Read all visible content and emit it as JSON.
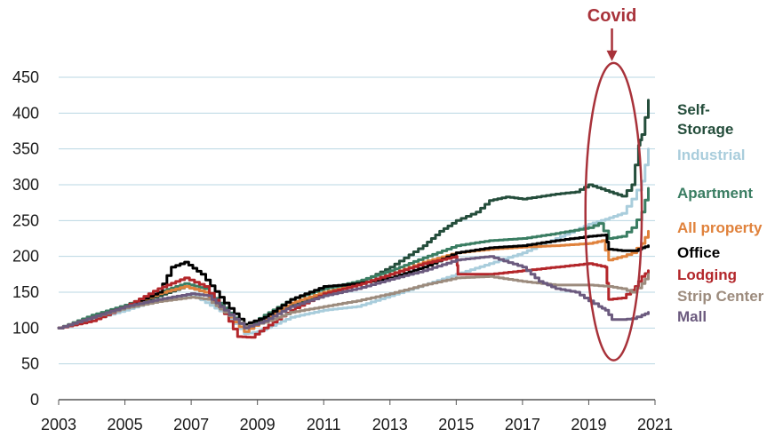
{
  "chart_data": {
    "type": "line",
    "title": "",
    "xlabel": "",
    "ylabel": "",
    "xlim": [
      2003,
      2021
    ],
    "ylim": [
      0,
      450
    ],
    "x_ticks": [
      2003,
      2005,
      2007,
      2009,
      2011,
      2013,
      2015,
      2017,
      2019,
      2021
    ],
    "x_tick_labels": [
      "2003",
      "2005",
      "2007",
      "2009",
      "2011",
      "2013",
      "2015",
      "2017",
      "2019",
      "2021"
    ],
    "y_ticks": [
      0,
      50,
      100,
      150,
      200,
      250,
      300,
      350,
      400,
      450
    ],
    "y_tick_labels": [
      "0",
      "50",
      "100",
      "150",
      "200",
      "250",
      "300",
      "350",
      "400",
      "450"
    ],
    "grid": "horizontal",
    "legend_position": "right",
    "annotation": {
      "label": "Covid",
      "x": 2019.7,
      "ellipse_x_range": [
        2018.9,
        2020.6
      ],
      "ellipse_y_range": [
        55,
        470
      ],
      "color": "#a8323a"
    },
    "series": [
      {
        "name": "Self-Storage",
        "label_lines": [
          "Self-",
          "Storage"
        ],
        "color": "#244d3b",
        "x": [
          2003,
          2004,
          2005,
          2006,
          2006.8,
          2007.4,
          2008,
          2008.6,
          2009.2,
          2010,
          2011,
          2012,
          2013,
          2014,
          2014.5,
          2015,
          2015.6,
          2016,
          2016.5,
          2017,
          2018,
          2018.6,
          2019,
          2019.5,
          2020,
          2020.3,
          2020.5,
          2020.6,
          2020.8
        ],
        "y": [
          100,
          115,
          130,
          145,
          158,
          150,
          125,
          100,
          115,
          132,
          150,
          162,
          185,
          215,
          235,
          250,
          262,
          278,
          283,
          280,
          287,
          290,
          300,
          292,
          284,
          300,
          355,
          370,
          418
        ]
      },
      {
        "name": "Industrial",
        "color": "#a9cddc",
        "x": [
          2003,
          2004,
          2005,
          2006,
          2007,
          2008,
          2008.6,
          2009,
          2010,
          2011,
          2012,
          2013,
          2014,
          2015,
          2016,
          2017,
          2018,
          2019,
          2019.5,
          2020,
          2020.3,
          2020.6,
          2020.8
        ],
        "y": [
          100,
          112,
          125,
          140,
          147,
          120,
          92,
          95,
          115,
          125,
          130,
          145,
          160,
          175,
          190,
          205,
          225,
          245,
          252,
          260,
          280,
          305,
          350
        ]
      },
      {
        "name": "Apartment",
        "color": "#3a7d62",
        "x": [
          2003,
          2004,
          2005,
          2006,
          2006.8,
          2007.4,
          2008,
          2008.6,
          2009.2,
          2010,
          2011,
          2012,
          2013,
          2014,
          2015,
          2016,
          2017,
          2018,
          2019,
          2019.3,
          2019.6,
          2020,
          2020.3,
          2020.6,
          2020.8
        ],
        "y": [
          100,
          118,
          132,
          150,
          162,
          155,
          128,
          100,
          118,
          140,
          155,
          165,
          180,
          198,
          215,
          222,
          225,
          232,
          240,
          246,
          225,
          228,
          240,
          262,
          295
        ]
      },
      {
        "name": "All property",
        "color": "#e0823c",
        "x": [
          2003,
          2004,
          2005,
          2006,
          2006.8,
          2007.4,
          2008,
          2008.6,
          2009.2,
          2010,
          2011,
          2012,
          2013,
          2014,
          2015,
          2016,
          2017,
          2018,
          2019,
          2019.4,
          2019.6,
          2020,
          2020.3,
          2020.6,
          2020.8
        ],
        "y": [
          100,
          115,
          130,
          148,
          158,
          150,
          122,
          95,
          112,
          135,
          150,
          160,
          175,
          192,
          205,
          210,
          213,
          215,
          218,
          222,
          195,
          200,
          205,
          218,
          235
        ]
      },
      {
        "name": "Office",
        "color": "#000000",
        "x": [
          2003,
          2004,
          2005,
          2006,
          2006.4,
          2006.8,
          2007.3,
          2008,
          2008.6,
          2009.2,
          2010,
          2011,
          2012,
          2013,
          2014,
          2015,
          2016,
          2017,
          2018,
          2019,
          2019.5,
          2019.6,
          2020,
          2020.4,
          2020.6,
          2020.8
        ],
        "y": [
          100,
          115,
          130,
          150,
          185,
          192,
          175,
          135,
          105,
          115,
          140,
          158,
          162,
          170,
          185,
          205,
          212,
          215,
          222,
          228,
          230,
          210,
          208,
          208,
          212,
          215
        ]
      },
      {
        "name": "Lodging",
        "color": "#b3262a",
        "x": [
          2003,
          2004,
          2005,
          2006,
          2006.8,
          2007.4,
          2008,
          2008.4,
          2008.8,
          2009.2,
          2010,
          2011,
          2012,
          2013,
          2014,
          2015,
          2015.05,
          2016,
          2017,
          2018,
          2019,
          2019.5,
          2019.6,
          2020,
          2020.4,
          2020.6,
          2020.8
        ],
        "y": [
          100,
          110,
          130,
          155,
          170,
          158,
          120,
          88,
          87,
          100,
          125,
          148,
          160,
          175,
          190,
          200,
          175,
          175,
          180,
          185,
          190,
          185,
          140,
          142,
          158,
          172,
          180
        ]
      },
      {
        "name": "Strip Center",
        "color": "#9c8b7d",
        "x": [
          2003,
          2004,
          2005,
          2006,
          2007,
          2007.5,
          2008,
          2008.6,
          2009.2,
          2010,
          2011,
          2012,
          2013,
          2014,
          2015,
          2016,
          2017,
          2018,
          2019,
          2019.6,
          2020,
          2020.3,
          2020.6,
          2020.8
        ],
        "y": [
          100,
          115,
          128,
          137,
          143,
          140,
          122,
          102,
          108,
          122,
          130,
          138,
          148,
          160,
          170,
          172,
          165,
          160,
          160,
          158,
          155,
          150,
          162,
          175
        ]
      },
      {
        "name": "Mall",
        "color": "#6b5a7e",
        "x": [
          2003,
          2004,
          2005,
          2006,
          2007,
          2007.5,
          2008,
          2008.6,
          2009.2,
          2010,
          2011,
          2012,
          2013,
          2014,
          2015,
          2016,
          2017,
          2017.5,
          2018,
          2018.6,
          2019,
          2019.3,
          2019.5,
          2019.7,
          2020,
          2020.3,
          2020.6,
          2020.8
        ],
        "y": [
          100,
          115,
          130,
          140,
          148,
          145,
          125,
          100,
          110,
          130,
          145,
          155,
          168,
          180,
          195,
          200,
          185,
          165,
          155,
          150,
          138,
          130,
          125,
          112,
          112,
          113,
          118,
          122
        ]
      }
    ]
  }
}
